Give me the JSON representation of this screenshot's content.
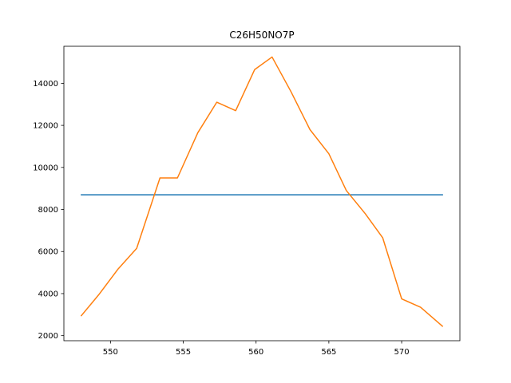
{
  "chart_data": {
    "type": "line",
    "title": "C26H50NO7P",
    "xlabel": "",
    "ylabel": "",
    "xlim": [
      546.8,
      574.0
    ],
    "ylim": [
      1760,
      15760
    ],
    "xticks": [
      550,
      555,
      560,
      565,
      570
    ],
    "yticks": [
      2000,
      4000,
      6000,
      8000,
      10000,
      12000,
      14000
    ],
    "grid": false,
    "series": [
      {
        "color": "#1f77b4",
        "x": [
          548.0,
          572.8
        ],
        "y": [
          8700,
          8700
        ]
      },
      {
        "color": "#ff7f0e",
        "x": [
          548.0,
          549.2,
          550.5,
          551.8,
          553.4,
          554.6,
          556.0,
          557.3,
          558.6,
          559.9,
          561.1,
          562.4,
          563.7,
          565.0,
          566.2,
          567.5,
          568.7,
          570.0,
          571.3,
          572.8
        ],
        "y": [
          2950,
          3950,
          5150,
          6150,
          9500,
          9500,
          11650,
          13100,
          12700,
          14650,
          15250,
          13600,
          11800,
          10650,
          8900,
          7800,
          6650,
          3750,
          3350,
          2450
        ]
      }
    ]
  }
}
